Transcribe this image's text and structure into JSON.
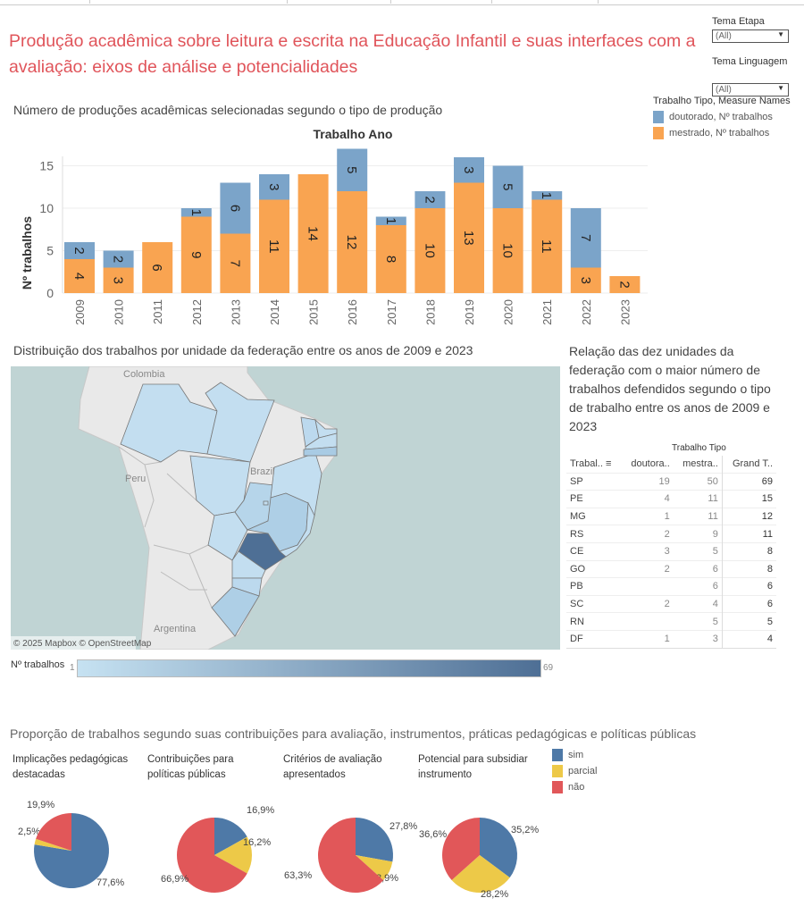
{
  "title": "Produção acadêmica sobre leitura e escrita na Educação Infantil e suas interfaces com a avaliação: eixos de análise e potencialidades",
  "filters": [
    {
      "label": "Tema Etapa",
      "value": "(All)"
    },
    {
      "label": "Tema Linguagem",
      "value": "(All)"
    }
  ],
  "colors": {
    "doutorado": "#7ba4c9",
    "mestrado": "#f9a451",
    "sim": "#4e79a7",
    "parcial": "#edc948",
    "nao": "#e15759",
    "title": "#e0545a",
    "map_low": "#c6e2f2",
    "map_high": "#4e6f95"
  },
  "bar_section": {
    "title": "Número de produções acadêmicas selecionadas segundo o tipo de produção"
  },
  "bar_legend": {
    "title": "Trabalho Tipo, Measure Names",
    "items": [
      "doutorado, Nº trabalhos",
      "mestrado, Nº trabalhos"
    ]
  },
  "chart_data": [
    {
      "type": "bar",
      "stacked": true,
      "title": "Trabalho Ano",
      "ylabel": "Nº trabalhos",
      "xlabel": "",
      "ylim": [
        0,
        17
      ],
      "yticks": [
        0,
        5,
        10,
        15
      ],
      "grid": true,
      "categories": [
        "2009",
        "2010",
        "2011",
        "2012",
        "2013",
        "2014",
        "2015",
        "2016",
        "2017",
        "2018",
        "2019",
        "2020",
        "2021",
        "2022",
        "2023"
      ],
      "series": [
        {
          "name": "mestrado, Nº trabalhos",
          "values": [
            4,
            3,
            6,
            9,
            7,
            11,
            14,
            12,
            8,
            10,
            13,
            10,
            11,
            3,
            2
          ]
        },
        {
          "name": "doutorado, Nº trabalhos",
          "values": [
            2,
            2,
            null,
            1,
            6,
            3,
            null,
            5,
            1,
            2,
            3,
            5,
            1,
            7,
            null
          ]
        }
      ]
    },
    {
      "type": "pie",
      "title": "Implicações pedagógicas destacadas",
      "categories": [
        "sim",
        "parcial",
        "não"
      ],
      "values": [
        77.6,
        2.5,
        19.9
      ],
      "labels": [
        "77,6%",
        "2,5%",
        "19,9%"
      ]
    },
    {
      "type": "pie",
      "title": "Contribuições para políticas públicas",
      "categories": [
        "sim",
        "parcial",
        "não"
      ],
      "values": [
        16.9,
        16.2,
        66.9
      ],
      "labels": [
        "16,9%",
        "16,2%",
        "66,9%"
      ]
    },
    {
      "type": "pie",
      "title": "Critérios de avaliação apresentados",
      "categories": [
        "sim",
        "parcial",
        "não"
      ],
      "values": [
        27.8,
        8.9,
        63.3
      ],
      "labels": [
        "27,8%",
        "8,9%",
        "63,3%"
      ]
    },
    {
      "type": "pie",
      "title": "Potencial para subsidiar instrumento",
      "categories": [
        "sim",
        "parcial",
        "não"
      ],
      "values": [
        35.2,
        28.2,
        36.6
      ],
      "labels": [
        "35,2%",
        "28,2%",
        "36,6%"
      ]
    }
  ],
  "map": {
    "title": "Distribuição dos trabalhos por unidade da federação entre os anos de 2009 e 2023",
    "places": [
      "Colombia",
      "Peru",
      "Brazil",
      "Argentina"
    ],
    "attribution": "© 2025 Mapbox © OpenStreetMap",
    "legend_title": "Nº trabalhos",
    "legend_min": "1",
    "legend_max": "69"
  },
  "table": {
    "title": "Relação das dez unidades da federação com o maior número de trabalhos defendidos segundo o tipo de trabalho entre os anos de 2009 e 2023",
    "group_header": "Trabalho Tipo",
    "headers": [
      "Trabal..",
      "doutora..",
      "mestra..",
      "Grand T.."
    ],
    "rows": [
      [
        "SP",
        "19",
        "50",
        "69"
      ],
      [
        "PE",
        "4",
        "11",
        "15"
      ],
      [
        "MG",
        "1",
        "11",
        "12"
      ],
      [
        "RS",
        "2",
        "9",
        "11"
      ],
      [
        "CE",
        "3",
        "5",
        "8"
      ],
      [
        "GO",
        "2",
        "6",
        "8"
      ],
      [
        "PB",
        "",
        "6",
        "6"
      ],
      [
        "SC",
        "2",
        "4",
        "6"
      ],
      [
        "RN",
        "",
        "5",
        "5"
      ],
      [
        "DF",
        "1",
        "3",
        "4"
      ]
    ]
  },
  "pies": {
    "title": "Proporção de trabalhos segundo suas contribuições para avaliação, instrumentos, práticas pedagógicas e políticas públicas",
    "legend": [
      "sim",
      "parcial",
      "não"
    ]
  }
}
